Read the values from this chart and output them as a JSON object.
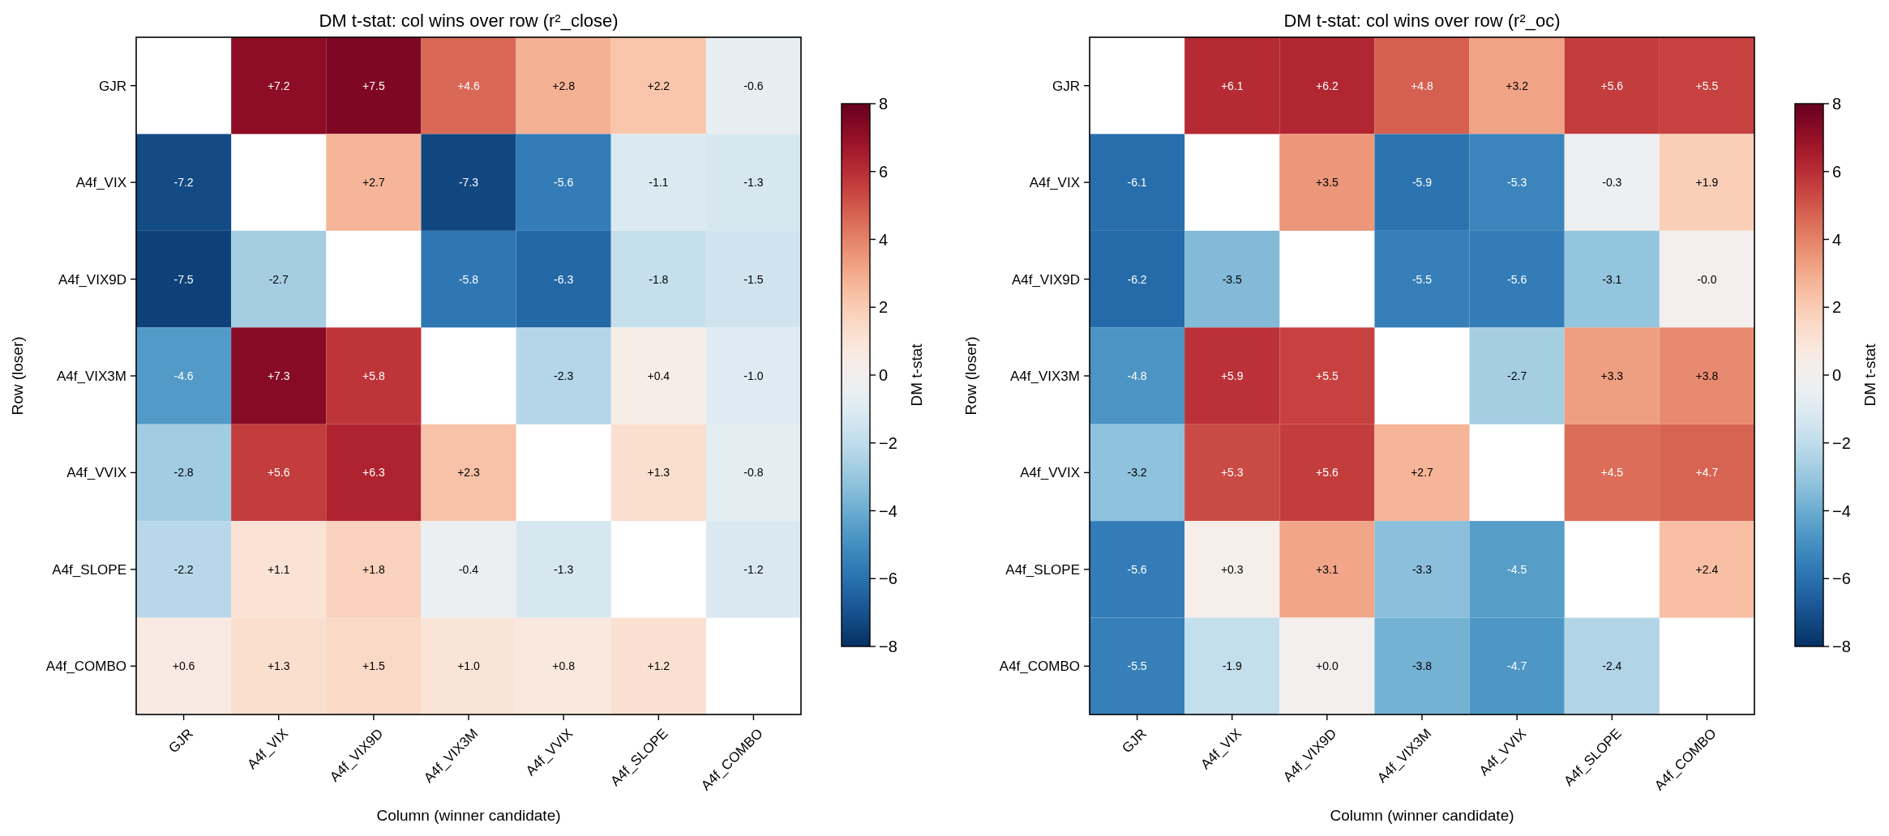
{
  "chart_data": [
    {
      "type": "heatmap",
      "title": "DM t-stat: col wins over row (r²_close)",
      "xlabel": "Column (winner candidate)",
      "ylabel": "Row (loser)",
      "clabel": "DM t-stat",
      "categories": [
        "GJR",
        "A4f_VIX",
        "A4f_VIX9D",
        "A4f_VIX3M",
        "A4f_VVIX",
        "A4f_SLOPE",
        "A4f_COMBO"
      ],
      "y_categories": [
        "GJR",
        "A4f_VIX",
        "A4f_VIX9D",
        "A4f_VIX3M",
        "A4f_VVIX",
        "A4f_SLOPE",
        "A4f_COMBO"
      ],
      "cells": [
        [
          null,
          7.2,
          7.5,
          4.6,
          2.8,
          2.2,
          -0.6
        ],
        [
          -7.2,
          null,
          2.7,
          -7.3,
          -5.6,
          -1.1,
          -1.3
        ],
        [
          -7.5,
          -2.7,
          null,
          -5.8,
          -6.3,
          -1.8,
          -1.5
        ],
        [
          -4.6,
          7.3,
          5.8,
          null,
          -2.3,
          0.4,
          -1.0
        ],
        [
          -2.8,
          5.6,
          6.3,
          2.3,
          null,
          1.3,
          -0.8
        ],
        [
          -2.2,
          1.1,
          1.8,
          -0.4,
          -1.3,
          null,
          -1.2
        ],
        [
          0.6,
          1.3,
          1.5,
          1.0,
          0.8,
          1.2,
          null
        ]
      ],
      "cell_labels": [
        [
          null,
          "+7.2",
          "+7.5",
          "+4.6",
          "+2.8",
          "+2.2",
          "-0.6"
        ],
        [
          "-7.2",
          null,
          "+2.7",
          "-7.3",
          "-5.6",
          "-1.1",
          "-1.3"
        ],
        [
          "-7.5",
          "-2.7",
          null,
          "-5.8",
          "-6.3",
          "-1.8",
          "-1.5"
        ],
        [
          "-4.6",
          "+7.3",
          "+5.8",
          null,
          "-2.3",
          "+0.4",
          "-1.0"
        ],
        [
          "-2.8",
          "+5.6",
          "+6.3",
          "+2.3",
          null,
          "+1.3",
          "-0.8"
        ],
        [
          "-2.2",
          "+1.1",
          "+1.8",
          "-0.4",
          "-1.3",
          null,
          "-1.2"
        ],
        [
          "+0.6",
          "+1.3",
          "+1.5",
          "+1.0",
          "+0.8",
          "+1.2",
          null
        ]
      ],
      "clim": [
        -8,
        8
      ],
      "cticks": [
        {
          "value": -8,
          "label": "−8"
        },
        {
          "value": -6,
          "label": "−6"
        },
        {
          "value": -4,
          "label": "−4"
        },
        {
          "value": -2,
          "label": "−2"
        },
        0,
        2,
        4,
        6,
        8
      ]
    },
    {
      "type": "heatmap",
      "title": "DM t-stat: col wins over row (r²_oc)",
      "xlabel": "Column (winner candidate)",
      "ylabel": "Row (loser)",
      "clabel": "DM t-stat",
      "categories": [
        "GJR",
        "A4f_VIX",
        "A4f_VIX9D",
        "A4f_VIX3M",
        "A4f_VVIX",
        "A4f_SLOPE",
        "A4f_COMBO"
      ],
      "y_categories": [
        "GJR",
        "A4f_VIX",
        "A4f_VIX9D",
        "A4f_VIX3M",
        "A4f_VVIX",
        "A4f_SLOPE",
        "A4f_COMBO"
      ],
      "cells": [
        [
          null,
          6.1,
          6.2,
          4.8,
          3.2,
          5.6,
          5.5
        ],
        [
          -6.1,
          null,
          3.5,
          -5.9,
          -5.3,
          -0.3,
          1.9
        ],
        [
          -6.2,
          -3.5,
          null,
          -5.5,
          -5.6,
          -3.1,
          -0.0
        ],
        [
          -4.8,
          5.9,
          5.5,
          null,
          -2.7,
          3.3,
          3.8
        ],
        [
          -3.2,
          5.3,
          5.6,
          2.7,
          null,
          4.5,
          4.7
        ],
        [
          -5.6,
          0.3,
          3.1,
          -3.3,
          -4.5,
          null,
          2.4
        ],
        [
          -5.5,
          -1.9,
          0.0,
          -3.8,
          -4.7,
          -2.4,
          null
        ]
      ],
      "cell_labels": [
        [
          null,
          "+6.1",
          "+6.2",
          "+4.8",
          "+3.2",
          "+5.6",
          "+5.5"
        ],
        [
          "-6.1",
          null,
          "+3.5",
          "-5.9",
          "-5.3",
          "-0.3",
          "+1.9"
        ],
        [
          "-6.2",
          "-3.5",
          null,
          "-5.5",
          "-5.6",
          "-3.1",
          "-0.0"
        ],
        [
          "-4.8",
          "+5.9",
          "+5.5",
          null,
          "-2.7",
          "+3.3",
          "+3.8"
        ],
        [
          "-3.2",
          "+5.3",
          "+5.6",
          "+2.7",
          null,
          "+4.5",
          "+4.7"
        ],
        [
          "-5.6",
          "+0.3",
          "+3.1",
          "-3.3",
          "-4.5",
          null,
          "+2.4"
        ],
        [
          "-5.5",
          "-1.9",
          "+0.0",
          "-3.8",
          "-4.7",
          "-2.4",
          null
        ]
      ],
      "clim": [
        -8,
        8
      ],
      "cticks": [
        {
          "value": -8,
          "label": "−8"
        },
        {
          "value": -6,
          "label": "−6"
        },
        {
          "value": -4,
          "label": "−4"
        },
        {
          "value": -2,
          "label": "−2"
        },
        0,
        2,
        4,
        6,
        8
      ]
    }
  ]
}
